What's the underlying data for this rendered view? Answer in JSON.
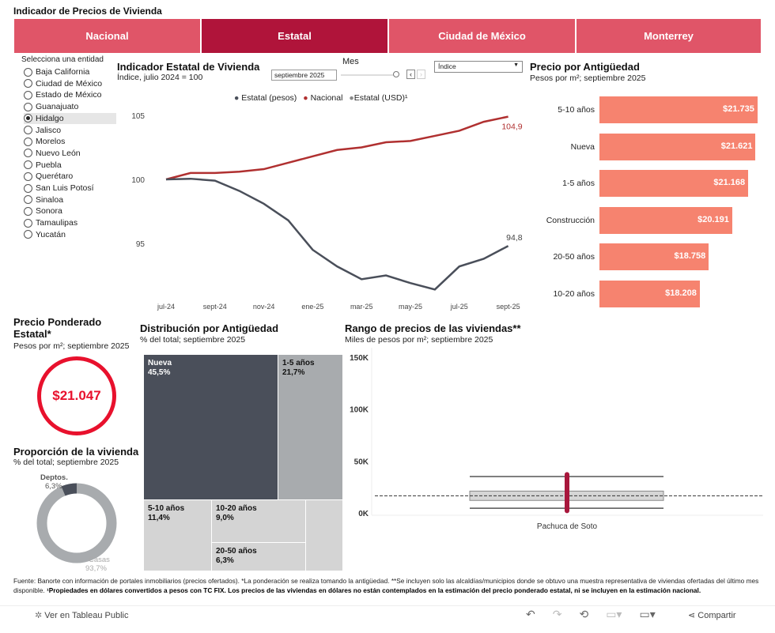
{
  "page_title": "Indicador de Precios de Vivienda",
  "tabs": [
    {
      "label": "Nacional"
    },
    {
      "label": "Estatal"
    },
    {
      "label": "Ciudad de México"
    },
    {
      "label": "Monterrey"
    }
  ],
  "entity_selector": {
    "label": "Selecciona una entidad",
    "selected": "Hidalgo",
    "options": [
      "Baja California",
      "Ciudad de México",
      "Estado de México",
      "Guanajuato",
      "Hidalgo",
      "Jalisco",
      "Morelos",
      "Nuevo León",
      "Puebla",
      "Querétaro",
      "San Luis Potosí",
      "Sinaloa",
      "Sonora",
      "Tamaulipas",
      "Yucatán"
    ]
  },
  "controls": {
    "mes_label": "Mes",
    "mes_value": "septiembre 2025",
    "slider_fraction": 1.0,
    "prev_icon": "chevron-left",
    "next_icon": "chevron-right",
    "measure_value": "Índice"
  },
  "colors": {
    "accent": "#B0143A",
    "tab": "#E05568",
    "nacional": "#B03030",
    "estatal": "#4A4F5A",
    "bar": "#F6836F",
    "ring": "#E8112D"
  },
  "chart_data": [
    {
      "type": "line",
      "title": "Indicador Estatal de Vivienda",
      "subtitle": "Índice, julio 2024 = 100",
      "legend": [
        "Estatal (pesos)",
        "Nacional",
        "Estatal (USD)¹"
      ],
      "legend_placement": "top",
      "x": [
        "jul-24",
        "ago-24",
        "sept-24",
        "oct-24",
        "nov-24",
        "dic-24",
        "ene-25",
        "feb-25",
        "mar-25",
        "abr-25",
        "may-25",
        "jun-25",
        "jul-25",
        "ago-25",
        "sept-25"
      ],
      "xticks": [
        "jul-24",
        "sept-24",
        "nov-24",
        "ene-25",
        "mar-25",
        "may-25",
        "jul-25",
        "sept-25"
      ],
      "yticks": [
        "105",
        "100",
        "95"
      ],
      "ylim": [
        90.5,
        106
      ],
      "series": [
        {
          "name": "Nacional",
          "color": "#B03030",
          "values": [
            100,
            100.5,
            100.5,
            100.6,
            100.8,
            101.3,
            101.8,
            102.3,
            102.5,
            102.9,
            103.0,
            103.4,
            103.8,
            104.5,
            104.9
          ],
          "end_label": "104,9"
        },
        {
          "name": "Estatal (pesos)",
          "color": "#4A4F5A",
          "values": [
            100,
            100.05,
            99.9,
            99.1,
            98.1,
            96.8,
            94.5,
            93.2,
            92.2,
            92.5,
            91.9,
            91.4,
            93.2,
            93.8,
            94.8
          ],
          "end_label": "94,8"
        }
      ]
    },
    {
      "type": "bar",
      "title": "Precio por Antigüedad",
      "subtitle": "Pesos por m²; septiembre 2025",
      "categories": [
        "5-10 años",
        "Nueva",
        "1-5 años",
        "Construcción",
        "20-50 años",
        "10-20 años"
      ],
      "values": [
        21735,
        21621,
        21168,
        20191,
        18758,
        18208
      ],
      "labels": [
        "$21.735",
        "$21.621",
        "$21.168",
        "$20.191",
        "$18.758",
        "$18.208"
      ]
    },
    {
      "type": "table",
      "title": "Precio Ponderado Estatal*",
      "subtitle": "Pesos por m²; septiembre 2025",
      "value": "$21.047"
    },
    {
      "type": "pie",
      "title": "Proporción de la vivienda",
      "subtitle": "% del total; septiembre 2025",
      "categories": [
        "Deptos.",
        "Casas"
      ],
      "values": [
        6.3,
        93.7
      ],
      "labels": [
        "6,3%",
        "93,7%"
      ]
    },
    {
      "type": "heatmap",
      "title": "Distribución por Antigüedad",
      "subtitle": "% del total; septiembre 2025",
      "categories": [
        "Nueva",
        "1-5 años",
        "5-10 años",
        "10-20 años",
        "20-50 años",
        "Construcción"
      ],
      "values": [
        45.5,
        21.7,
        11.4,
        9.0,
        6.3,
        6.1
      ],
      "labels": [
        "45,5%",
        "21,7%",
        "11,4%",
        "9,0%",
        "6,3%",
        ""
      ]
    },
    {
      "type": "bar",
      "title": "Rango de precios de las viviendas**",
      "subtitle": "Miles de pesos por m²; septiembre 2025",
      "categories": [
        "Pachuca de Soto"
      ],
      "yticks": [
        "150K",
        "100K",
        "50K",
        "0K"
      ],
      "ylim": [
        0,
        150
      ],
      "whisker_low": 4.5,
      "q1": 12,
      "q3": 21,
      "whisker_high": 35,
      "range_low": 2,
      "range_high": 37,
      "reference_line": 16.5
    }
  ],
  "footer": {
    "text1": "Fuente: Banorte con información de portales inmobiliarios (precios ofertados). *La ponderación se realiza tomando la antigüedad.  **Se incluyen solo las alcaldías/municipios donde se obtuvo una muestra representativa de viviendas ofertadas del último mes disponible. ",
    "text2": "¹Propiedades en dólares convertidos a pesos con TC FIX. Los precios de las viviendas en dólares no están contemplados en la estimación del precio ponderado estatal, ni se incluyen en la estimación nacional."
  },
  "toolbar": {
    "view_label": "Ver en Tableau Public",
    "share_label": "Compartir"
  }
}
